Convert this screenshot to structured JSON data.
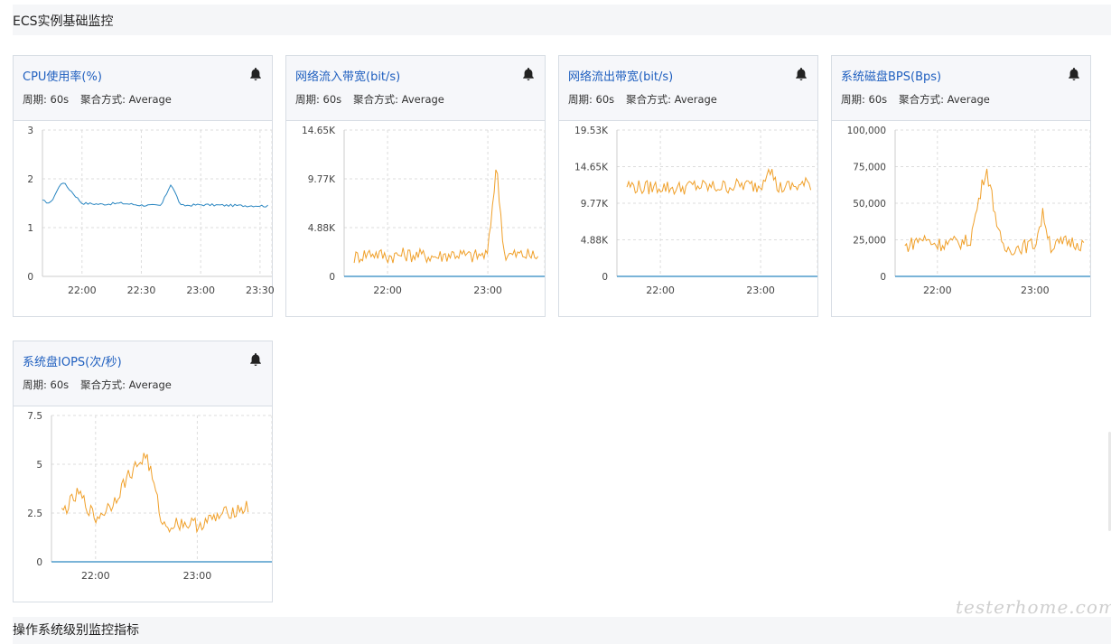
{
  "section": {
    "title": "ECS实例基础监控"
  },
  "next_section": {
    "title": "操作系统级别监控指标"
  },
  "watermark": "testerhome.com",
  "meta": {
    "period_label": "周期: 60s",
    "agg_label": "聚合方式: Average"
  },
  "colors": {
    "blue_series": "#2a86c1",
    "orange_series": "#f0a02a",
    "title_link": "#1f5fbf"
  },
  "charts": [
    {
      "title": "CPU使用率(%)",
      "yticks": [
        "3",
        "2",
        "1",
        "0"
      ],
      "xticks": [
        "22:00",
        "22:30",
        "23:00",
        "23:30"
      ]
    },
    {
      "title": "网络流入带宽(bit/s)",
      "yticks": [
        "14.65K",
        "9.77K",
        "4.88K",
        "0"
      ],
      "xticks": [
        "22:00",
        "23:00"
      ]
    },
    {
      "title": "网络流出带宽(bit/s)",
      "yticks": [
        "19.53K",
        "14.65K",
        "9.77K",
        "4.88K",
        "0"
      ],
      "xticks": [
        "22:00",
        "23:00"
      ]
    },
    {
      "title": "系统磁盘BPS(Bps)",
      "yticks": [
        "100,000",
        "75,000",
        "50,000",
        "25,000",
        "0"
      ],
      "xticks": [
        "22:00",
        "23:00"
      ]
    },
    {
      "title": "系统盘IOPS(次/秒)",
      "yticks": [
        "7.5",
        "5",
        "2.5",
        "0"
      ],
      "xticks": [
        "22:00",
        "23:00"
      ]
    }
  ],
  "chart_data": [
    {
      "type": "line",
      "title": "CPU使用率(%)",
      "ylim": [
        0,
        3
      ],
      "x": [
        "21:40",
        "21:44",
        "21:50",
        "22:00",
        "22:10",
        "22:20",
        "22:30",
        "22:40",
        "22:45",
        "22:50",
        "23:00",
        "23:10",
        "23:20",
        "23:30",
        "23:34"
      ],
      "series": [
        {
          "values": [
            1.55,
            1.5,
            1.95,
            1.5,
            1.48,
            1.5,
            1.46,
            1.45,
            1.9,
            1.45,
            1.47,
            1.46,
            1.45,
            1.45,
            1.44
          ]
        }
      ]
    },
    {
      "type": "line",
      "title": "网络流入带宽(bit/s)",
      "ylim": [
        0,
        14650
      ],
      "x": [
        "21:40",
        "21:50",
        "22:00",
        "22:10",
        "22:20",
        "22:30",
        "22:40",
        "22:50",
        "23:00",
        "23:05",
        "23:10",
        "23:20",
        "23:30"
      ],
      "series": [
        {
          "values": [
            1900,
            2400,
            2000,
            2200,
            2100,
            2000,
            2300,
            2000,
            2200,
            11200,
            2100,
            2200,
            2000
          ]
        },
        {
          "values": [
            0,
            0,
            0,
            0,
            0,
            0,
            0,
            0,
            0,
            0,
            0,
            0,
            0
          ]
        }
      ]
    },
    {
      "type": "line",
      "title": "网络流出带宽(bit/s)",
      "ylim": [
        0,
        19530
      ],
      "x": [
        "21:40",
        "21:50",
        "22:00",
        "22:10",
        "22:20",
        "22:30",
        "22:40",
        "22:50",
        "23:00",
        "23:05",
        "23:10",
        "23:20",
        "23:30"
      ],
      "series": [
        {
          "values": [
            12200,
            11800,
            12000,
            11700,
            12100,
            11900,
            12000,
            12200,
            12000,
            15000,
            11800,
            12000,
            12400
          ]
        },
        {
          "values": [
            0,
            0,
            0,
            0,
            0,
            0,
            0,
            0,
            0,
            0,
            0,
            0,
            0
          ]
        }
      ]
    },
    {
      "type": "line",
      "title": "系统磁盘BPS(Bps)",
      "ylim": [
        0,
        100000
      ],
      "x": [
        "21:40",
        "21:50",
        "22:00",
        "22:10",
        "22:20",
        "22:30",
        "22:40",
        "22:50",
        "23:00",
        "23:05",
        "23:10",
        "23:20",
        "23:30"
      ],
      "series": [
        {
          "values": [
            20000,
            26000,
            22000,
            23000,
            24000,
            75000,
            18000,
            20000,
            22000,
            43000,
            20000,
            24000,
            22000
          ]
        },
        {
          "values": [
            0,
            0,
            0,
            0,
            0,
            0,
            0,
            0,
            0,
            0,
            0,
            0,
            0
          ]
        }
      ]
    },
    {
      "type": "line",
      "title": "系统盘IOPS(次/秒)",
      "ylim": [
        0,
        7.5
      ],
      "x": [
        "21:40",
        "21:50",
        "22:00",
        "22:10",
        "22:20",
        "22:30",
        "22:40",
        "22:50",
        "23:00",
        "23:10",
        "23:20",
        "23:30"
      ],
      "series": [
        {
          "values": [
            2.5,
            3.5,
            2.2,
            3.0,
            4.5,
            5.5,
            1.8,
            2.0,
            1.9,
            2.2,
            2.6,
            2.8
          ]
        },
        {
          "values": [
            0,
            0,
            0,
            0,
            0,
            0,
            0,
            0,
            0,
            0,
            0,
            0
          ]
        }
      ]
    }
  ]
}
